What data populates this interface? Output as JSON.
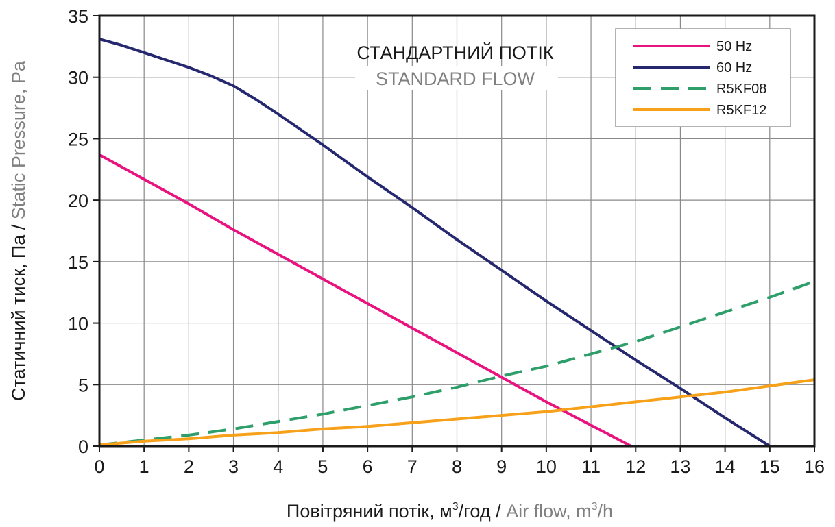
{
  "chart_data": {
    "type": "line",
    "title": "СТАНДАРТНИЙ ПОТІК",
    "subtitle": "STANDARD FLOW",
    "xlabel": {
      "primary": "Повітряний потік, м",
      "primary_sup": "3",
      "primary_suffix": "/год / ",
      "secondary": "Air flow, m",
      "secondary_sup": "3",
      "secondary_suffix": "/h"
    },
    "ylabel": {
      "primary": "Статичний тиск, Па / ",
      "secondary": "Static Pressure, Pa"
    },
    "xlim": [
      0,
      16
    ],
    "ylim": [
      0,
      35
    ],
    "xticks": [
      "0",
      "1",
      "2",
      "3",
      "4",
      "5",
      "6",
      "7",
      "8",
      "9",
      "10",
      "11",
      "12",
      "13",
      "14",
      "15",
      "16"
    ],
    "yticks": [
      "0",
      "5",
      "10",
      "15",
      "20",
      "25",
      "30",
      "35"
    ],
    "grid": true,
    "legend_position": "top-right",
    "series": [
      {
        "name": "50 Hz",
        "color": "#e8137e",
        "style": "solid",
        "x": [
          0,
          1,
          2,
          3,
          4,
          5,
          6,
          7,
          8,
          9,
          10,
          11,
          11.9
        ],
        "y": [
          23.7,
          21.7,
          19.7,
          17.6,
          15.6,
          13.6,
          11.6,
          9.6,
          7.6,
          5.6,
          3.6,
          1.7,
          0
        ]
      },
      {
        "name": "60 Hz",
        "color": "#25286f",
        "style": "solid",
        "x": [
          0,
          0.5,
          1,
          1.5,
          2,
          2.5,
          3,
          3.5,
          4,
          5,
          6,
          7,
          8,
          9,
          10,
          11,
          12,
          13,
          14,
          15
        ],
        "y": [
          33.1,
          32.6,
          32.0,
          31.4,
          30.8,
          30.1,
          29.3,
          28.2,
          27.0,
          24.5,
          21.9,
          19.4,
          16.8,
          14.3,
          11.8,
          9.4,
          7.0,
          4.7,
          2.3,
          0
        ]
      },
      {
        "name": "R5KF08",
        "color": "#2e9e6a",
        "style": "dashed",
        "x": [
          0,
          1,
          2,
          3,
          4,
          5,
          6,
          7,
          8,
          9,
          10,
          11,
          12,
          13,
          14,
          15,
          16
        ],
        "y": [
          0.1,
          0.5,
          0.9,
          1.4,
          2.0,
          2.6,
          3.3,
          4.0,
          4.8,
          5.7,
          6.5,
          7.5,
          8.5,
          9.7,
          10.9,
          12.1,
          13.4
        ]
      },
      {
        "name": "R5KF12",
        "color": "#f7a11a",
        "style": "solid",
        "x": [
          0,
          1,
          2,
          3,
          4,
          5,
          6,
          7,
          8,
          9,
          10,
          11,
          12,
          13,
          14,
          15,
          16
        ],
        "y": [
          0.1,
          0.4,
          0.6,
          0.9,
          1.1,
          1.4,
          1.6,
          1.9,
          2.2,
          2.5,
          2.8,
          3.2,
          3.6,
          4.0,
          4.4,
          4.9,
          5.4
        ]
      }
    ]
  }
}
